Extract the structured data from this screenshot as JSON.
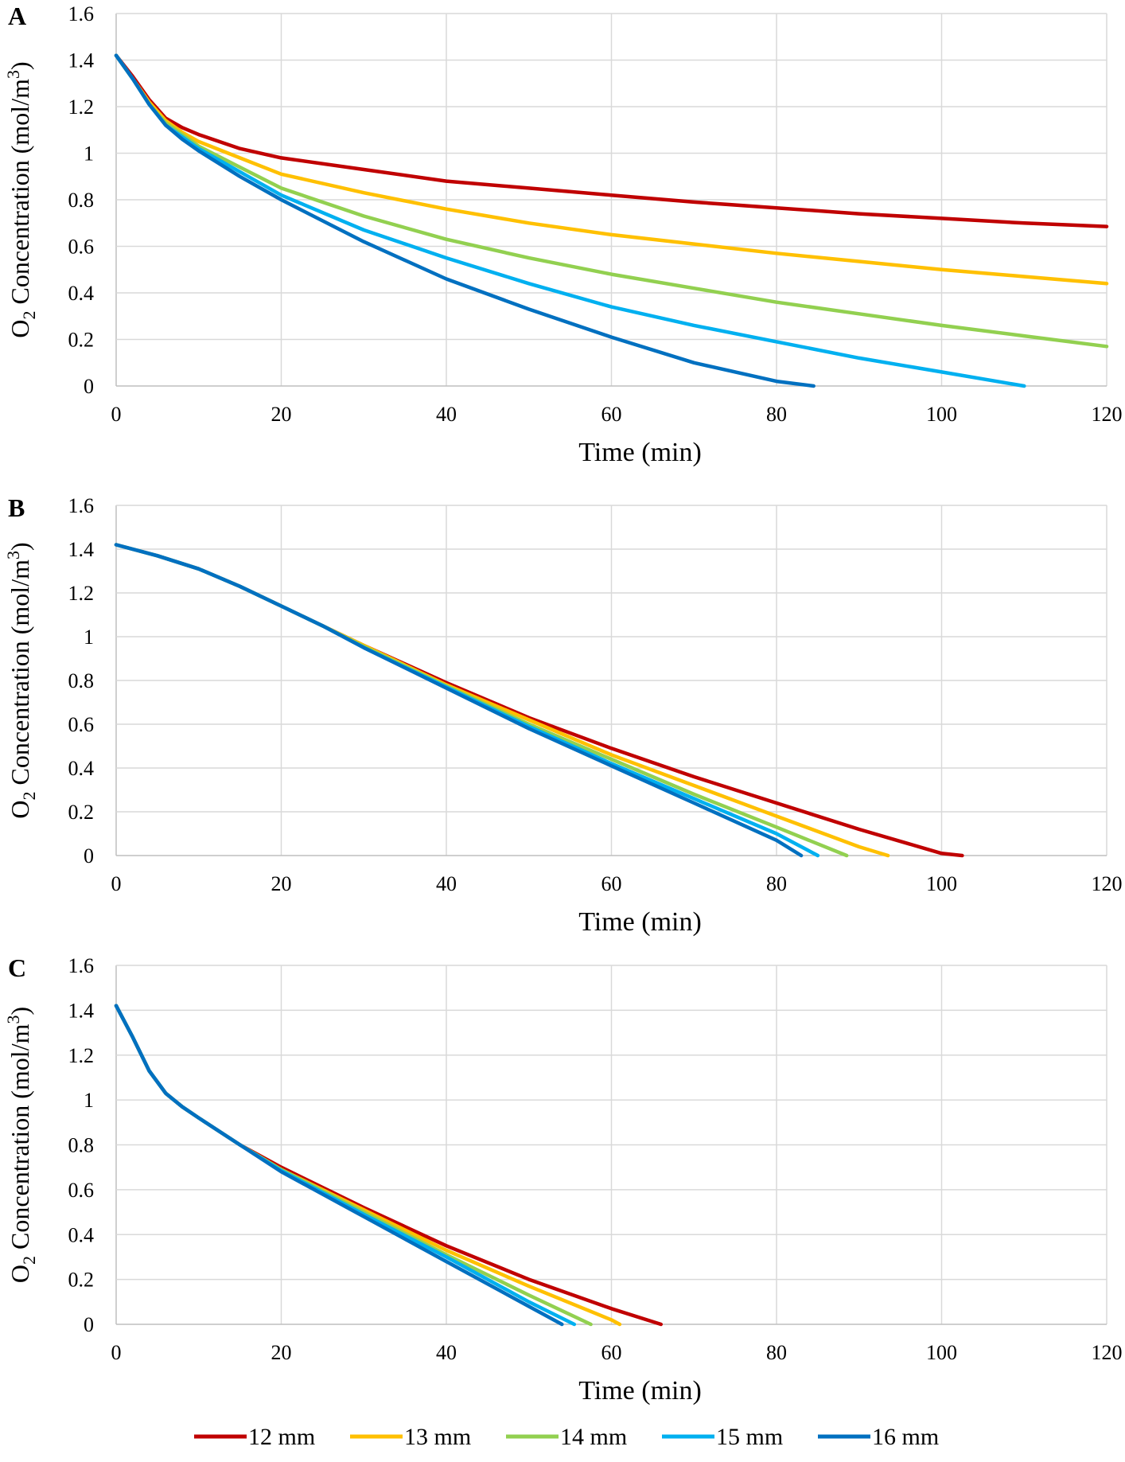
{
  "chart_data": [
    {
      "type": "line",
      "panel": "A",
      "xlabel": "Time (min)",
      "ylabel": {
        "prefix": "O",
        "sub": "2",
        "mid": " Concentration (mol/m",
        "sup": "3",
        "suffix": ")"
      },
      "xlim": [
        0,
        120
      ],
      "ylim": [
        0,
        1.6
      ],
      "x_ticks": [
        "0",
        "20",
        "40",
        "60",
        "80",
        "100",
        "120"
      ],
      "y_ticks": [
        "0",
        "0.2",
        "0.4",
        "0.6",
        "0.8",
        "1",
        "1.2",
        "1.4",
        "1.6"
      ],
      "grid": true,
      "series": [
        {
          "name": "12 mm",
          "x": [
            0,
            2,
            4,
            6,
            8,
            10,
            15,
            20,
            30,
            40,
            50,
            60,
            70,
            80,
            90,
            100,
            110,
            120
          ],
          "y": [
            1.42,
            1.33,
            1.23,
            1.15,
            1.11,
            1.08,
            1.02,
            0.98,
            0.93,
            0.88,
            0.85,
            0.82,
            0.79,
            0.765,
            0.74,
            0.72,
            0.7,
            0.685
          ]
        },
        {
          "name": "13 mm",
          "x": [
            0,
            2,
            4,
            6,
            8,
            10,
            15,
            20,
            30,
            40,
            50,
            60,
            70,
            80,
            90,
            100,
            110,
            120
          ],
          "y": [
            1.42,
            1.32,
            1.22,
            1.14,
            1.09,
            1.05,
            0.98,
            0.91,
            0.83,
            0.76,
            0.7,
            0.65,
            0.61,
            0.57,
            0.535,
            0.5,
            0.47,
            0.44
          ]
        },
        {
          "name": "14 mm",
          "x": [
            0,
            2,
            4,
            6,
            8,
            10,
            15,
            20,
            30,
            40,
            50,
            60,
            70,
            80,
            90,
            100,
            110,
            120
          ],
          "y": [
            1.42,
            1.32,
            1.21,
            1.13,
            1.08,
            1.03,
            0.94,
            0.85,
            0.73,
            0.63,
            0.55,
            0.48,
            0.42,
            0.36,
            0.31,
            0.26,
            0.215,
            0.17
          ]
        },
        {
          "name": "15 mm",
          "x": [
            0,
            2,
            4,
            6,
            8,
            10,
            15,
            20,
            30,
            40,
            50,
            60,
            70,
            80,
            90,
            100,
            110
          ],
          "y": [
            1.42,
            1.32,
            1.21,
            1.12,
            1.07,
            1.02,
            0.92,
            0.82,
            0.67,
            0.55,
            0.44,
            0.34,
            0.26,
            0.19,
            0.12,
            0.06,
            0.0
          ]
        },
        {
          "name": "16 mm",
          "x": [
            0,
            2,
            4,
            6,
            8,
            10,
            15,
            20,
            30,
            40,
            50,
            60,
            70,
            80,
            84.5
          ],
          "y": [
            1.42,
            1.32,
            1.21,
            1.12,
            1.06,
            1.01,
            0.9,
            0.8,
            0.62,
            0.46,
            0.33,
            0.21,
            0.1,
            0.02,
            0.0
          ]
        }
      ]
    },
    {
      "type": "line",
      "panel": "B",
      "xlabel": "Time (min)",
      "ylabel": {
        "prefix": "O",
        "sub": "2",
        "mid": " Concentration (mol/m",
        "sup": "3",
        "suffix": ")"
      },
      "xlim": [
        0,
        120
      ],
      "ylim": [
        0,
        1.6
      ],
      "x_ticks": [
        "0",
        "20",
        "40",
        "60",
        "80",
        "100",
        "120"
      ],
      "y_ticks": [
        "0",
        "0.2",
        "0.4",
        "0.6",
        "0.8",
        "1",
        "1.2",
        "1.4",
        "1.6"
      ],
      "grid": true,
      "series": [
        {
          "name": "12 mm",
          "x": [
            0,
            5,
            10,
            15,
            20,
            25,
            30,
            40,
            50,
            60,
            70,
            80,
            90,
            100,
            102.5
          ],
          "y": [
            1.42,
            1.37,
            1.31,
            1.23,
            1.14,
            1.05,
            0.96,
            0.79,
            0.63,
            0.49,
            0.36,
            0.24,
            0.12,
            0.01,
            0.0
          ]
        },
        {
          "name": "13 mm",
          "x": [
            0,
            5,
            10,
            15,
            20,
            25,
            30,
            40,
            50,
            60,
            70,
            80,
            90,
            93.5
          ],
          "y": [
            1.42,
            1.37,
            1.31,
            1.23,
            1.14,
            1.05,
            0.96,
            0.78,
            0.62,
            0.46,
            0.32,
            0.18,
            0.04,
            0.0
          ]
        },
        {
          "name": "14 mm",
          "x": [
            0,
            5,
            10,
            15,
            20,
            25,
            30,
            40,
            50,
            60,
            70,
            80,
            88.5
          ],
          "y": [
            1.42,
            1.37,
            1.31,
            1.23,
            1.14,
            1.05,
            0.955,
            0.775,
            0.6,
            0.44,
            0.28,
            0.13,
            0.0
          ]
        },
        {
          "name": "15 mm",
          "x": [
            0,
            5,
            10,
            15,
            20,
            25,
            30,
            40,
            50,
            60,
            70,
            80,
            85
          ],
          "y": [
            1.42,
            1.37,
            1.31,
            1.23,
            1.14,
            1.05,
            0.95,
            0.77,
            0.59,
            0.42,
            0.26,
            0.1,
            0.0
          ]
        },
        {
          "name": "16 mm",
          "x": [
            0,
            5,
            10,
            15,
            20,
            25,
            30,
            40,
            50,
            60,
            70,
            80,
            83
          ],
          "y": [
            1.42,
            1.37,
            1.31,
            1.23,
            1.14,
            1.05,
            0.95,
            0.765,
            0.58,
            0.41,
            0.24,
            0.07,
            0.0
          ]
        }
      ]
    },
    {
      "type": "line",
      "panel": "C",
      "xlabel": "Time (min)",
      "ylabel": {
        "prefix": "O",
        "sub": "2",
        "mid": " Concentration (mol/m",
        "sup": "3",
        "suffix": ")"
      },
      "xlim": [
        0,
        120
      ],
      "ylim": [
        0,
        1.6
      ],
      "x_ticks": [
        "0",
        "20",
        "40",
        "60",
        "80",
        "100",
        "120"
      ],
      "y_ticks": [
        "0",
        "0.2",
        "0.4",
        "0.6",
        "0.8",
        "1",
        "1.2",
        "1.4",
        "1.6"
      ],
      "grid": true,
      "series": [
        {
          "name": "12 mm",
          "x": [
            0,
            2,
            4,
            6,
            8,
            10,
            15,
            20,
            30,
            40,
            50,
            60,
            66
          ],
          "y": [
            1.42,
            1.28,
            1.13,
            1.03,
            0.97,
            0.92,
            0.8,
            0.7,
            0.52,
            0.35,
            0.2,
            0.07,
            0.0
          ]
        },
        {
          "name": "13 mm",
          "x": [
            0,
            2,
            4,
            6,
            8,
            10,
            15,
            20,
            30,
            40,
            50,
            60,
            61
          ],
          "y": [
            1.42,
            1.28,
            1.13,
            1.03,
            0.97,
            0.92,
            0.8,
            0.69,
            0.51,
            0.33,
            0.17,
            0.02,
            0.0
          ]
        },
        {
          "name": "14 mm",
          "x": [
            0,
            2,
            4,
            6,
            8,
            10,
            15,
            20,
            30,
            40,
            50,
            57.5
          ],
          "y": [
            1.42,
            1.28,
            1.13,
            1.03,
            0.97,
            0.92,
            0.8,
            0.69,
            0.5,
            0.31,
            0.13,
            0.0
          ]
        },
        {
          "name": "15 mm",
          "x": [
            0,
            2,
            4,
            6,
            8,
            10,
            15,
            20,
            30,
            40,
            50,
            55.5
          ],
          "y": [
            1.42,
            1.28,
            1.13,
            1.03,
            0.97,
            0.92,
            0.8,
            0.685,
            0.49,
            0.3,
            0.1,
            0.0
          ]
        },
        {
          "name": "16 mm",
          "x": [
            0,
            2,
            4,
            6,
            8,
            10,
            15,
            20,
            30,
            40,
            50,
            54
          ],
          "y": [
            1.42,
            1.28,
            1.13,
            1.03,
            0.97,
            0.92,
            0.8,
            0.68,
            0.48,
            0.28,
            0.08,
            0.0
          ]
        }
      ]
    }
  ],
  "legend": {
    "placement": "bottom",
    "items": [
      {
        "label": "12 mm",
        "color": "#C00000"
      },
      {
        "label": "13 mm",
        "color": "#FFC000"
      },
      {
        "label": "14 mm",
        "color": "#92D050"
      },
      {
        "label": "15 mm",
        "color": "#00B0F0"
      },
      {
        "label": "16 mm",
        "color": "#0070C0"
      }
    ]
  }
}
